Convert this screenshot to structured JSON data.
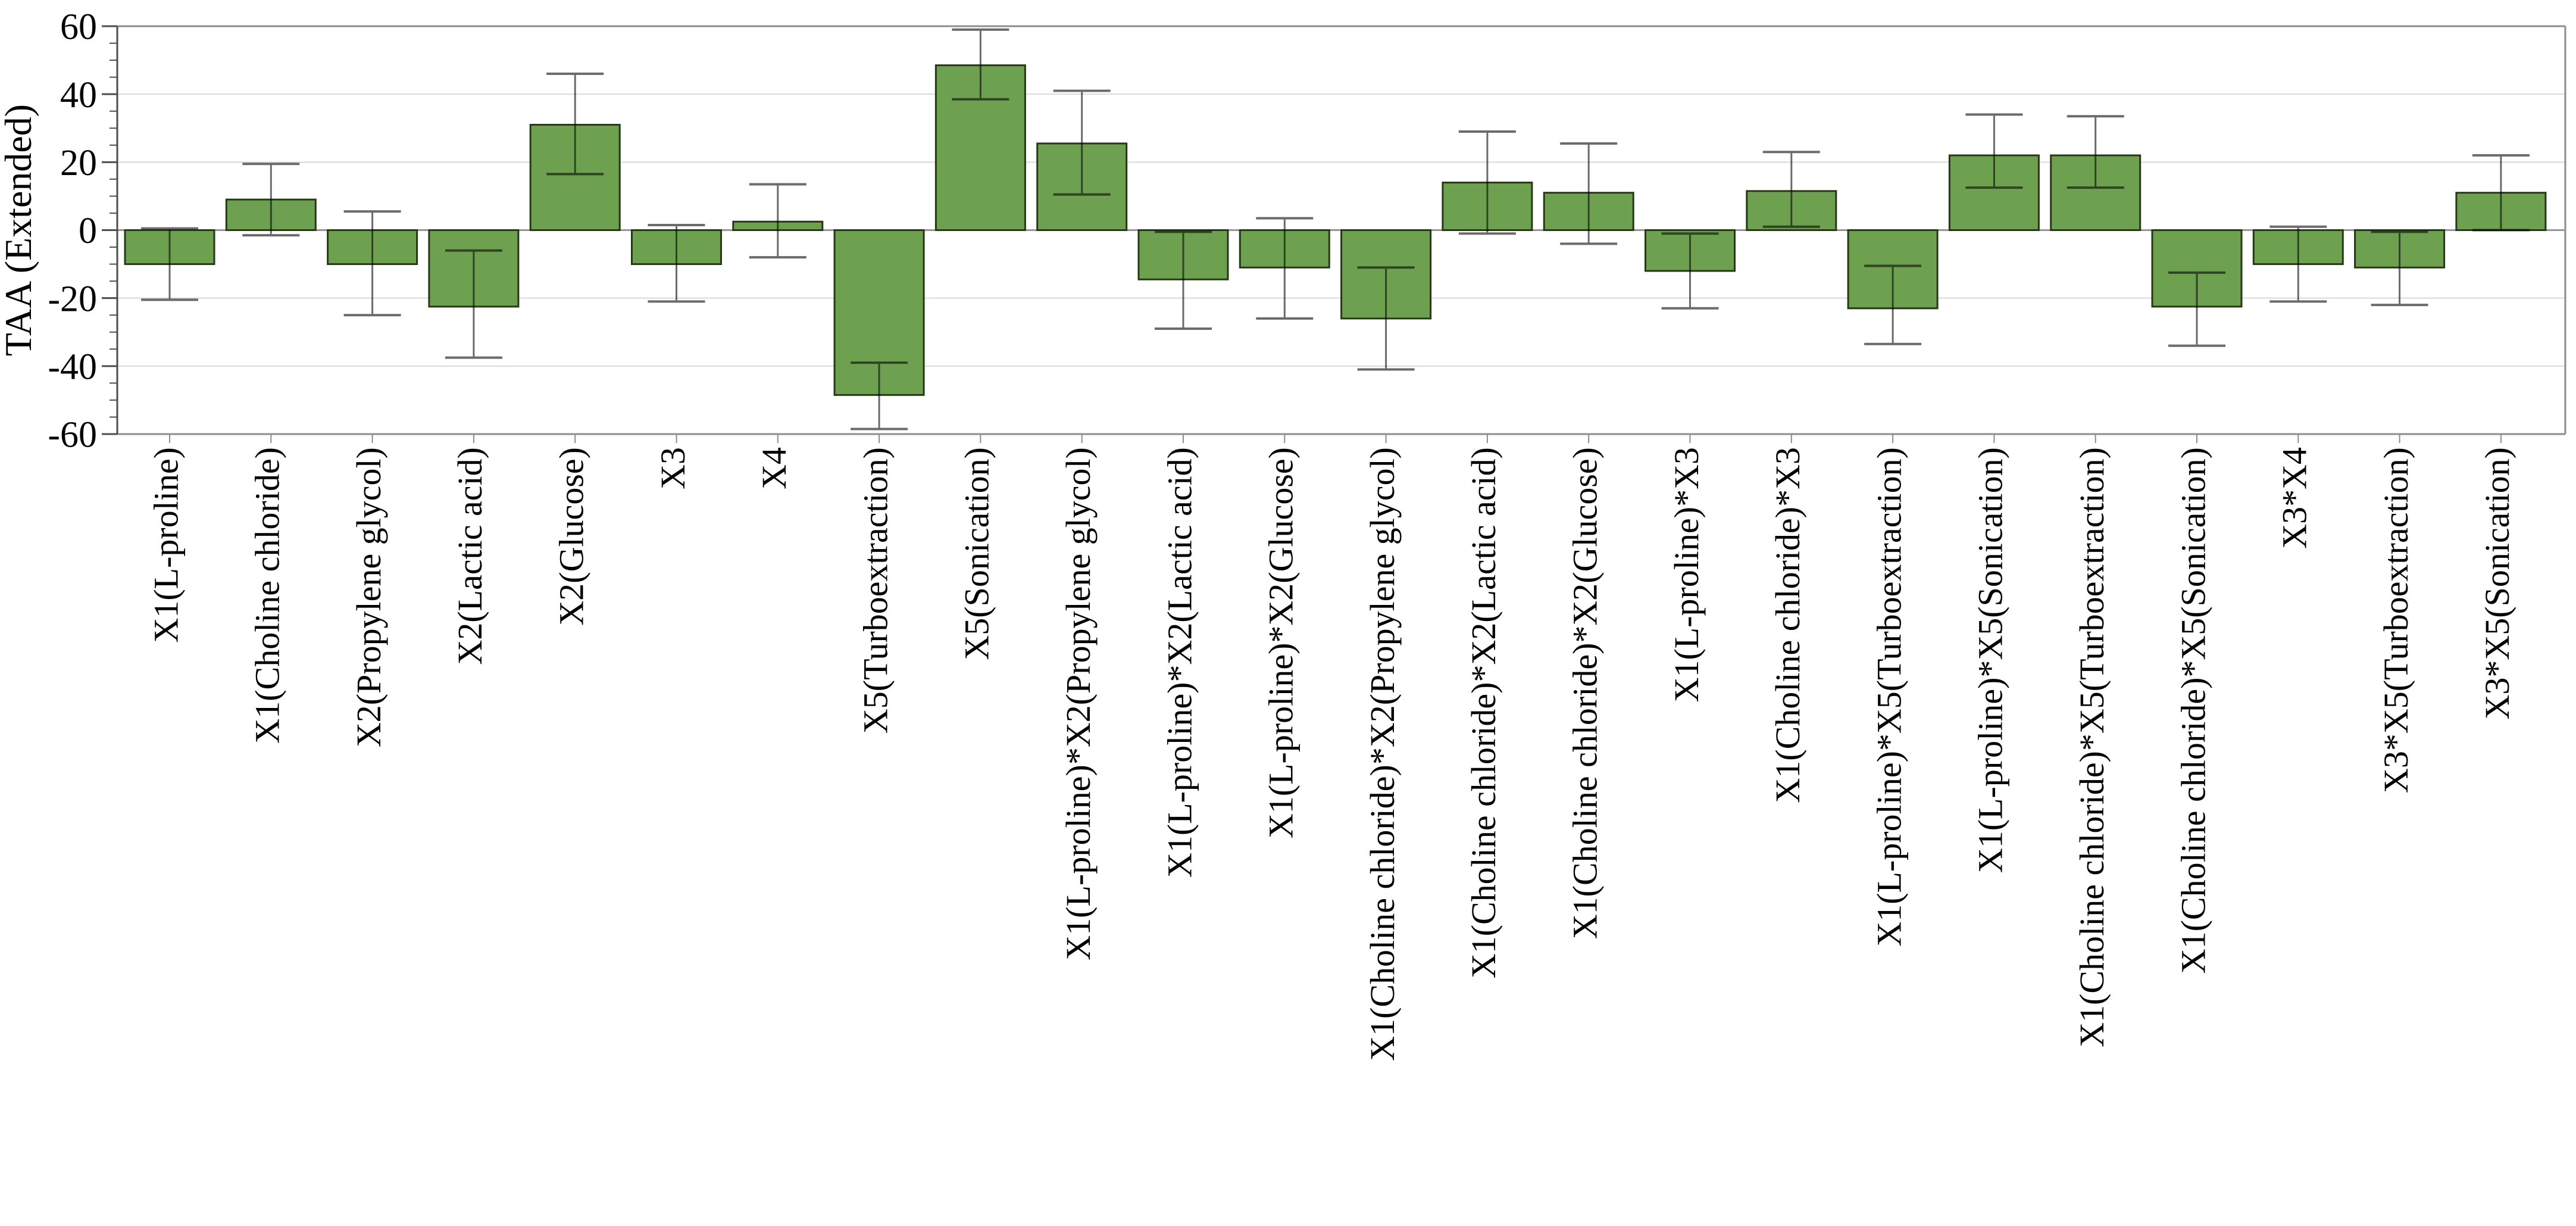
{
  "figure": {
    "background": "#FFFFFF",
    "description": "Bar chart with error bars showing factor effects on TAA (Extended)"
  },
  "chart_data": {
    "type": "bar",
    "title": "",
    "xlabel": "",
    "ylabel": "TAA (Extended)",
    "ylim": [
      -60,
      60
    ],
    "yticks": [
      60,
      40,
      20,
      0,
      -20,
      -40,
      -60
    ],
    "ytick_labels": [
      "60",
      "40",
      "20",
      "0",
      "-20",
      "-40",
      "-60"
    ],
    "ytick_minor_step": 5,
    "grid": "horizontal-major-light",
    "legend": "none",
    "bar_fill_color": "#6DA150",
    "bar_edge_color": "#263816",
    "error_bar_color": "#6B6B6B",
    "gridline_color": "#D9D9D9",
    "zero_line_color": "#969696",
    "frame_color": "#8C8C8C",
    "axis_color": "#4D4D4D",
    "categories": [
      "X1(L-proline)",
      "X1(Choline chloride)",
      "X2(Propylene glycol)",
      "X2(Lactic acid)",
      "X2(Glucose)",
      "X3",
      "X4",
      "X5(Turboextraction)",
      "X5(Sonication)",
      "X1(L-proline)*X2(Propylene glycol)",
      "X1(L-proline)*X2(Lactic acid)",
      "X1(L-proline)*X2(Glucose)",
      "X1(Choline chloride)*X2(Propylene glycol)",
      "X1(Choline chloride)*X2(Lactic acid)",
      "X1(Choline chloride)*X2(Glucose)",
      "X1(L-proline)*X3",
      "X1(Choline chloride)*X3",
      "X1(L-proline)*X5(Turboextraction)",
      "X1(L-proline)*X5(Sonication)",
      "X1(Choline chloride)*X5(Turboextraction)",
      "X1(Choline chloride)*X5(Sonication)",
      "X3*X4",
      "X3*X5(Turboextraction)",
      "X3*X5(Sonication)"
    ],
    "values": [
      -10,
      9,
      -10,
      -22.5,
      31,
      -10,
      2.5,
      -48.5,
      48.5,
      25.5,
      -14.5,
      -11,
      -26,
      14,
      11,
      -12,
      11.5,
      -23,
      22,
      22,
      -22.5,
      -10,
      -11,
      11
    ],
    "error_bars": {
      "low": [
        -20.5,
        -1.5,
        -25,
        -37.5,
        16.5,
        -21,
        -8,
        -58.5,
        38.5,
        10.5,
        -29,
        -26,
        -41,
        -1,
        -4,
        -23,
        1,
        -33.5,
        12.5,
        12.5,
        -34,
        -21,
        -22,
        0
      ],
      "high": [
        0.5,
        19.5,
        5.5,
        -6,
        46,
        1.5,
        13.5,
        -39,
        59,
        41,
        -0.5,
        3.5,
        -11,
        29,
        25.5,
        -1,
        23,
        -10.5,
        34,
        33.5,
        -12.5,
        1,
        -0.5,
        22
      ]
    }
  }
}
